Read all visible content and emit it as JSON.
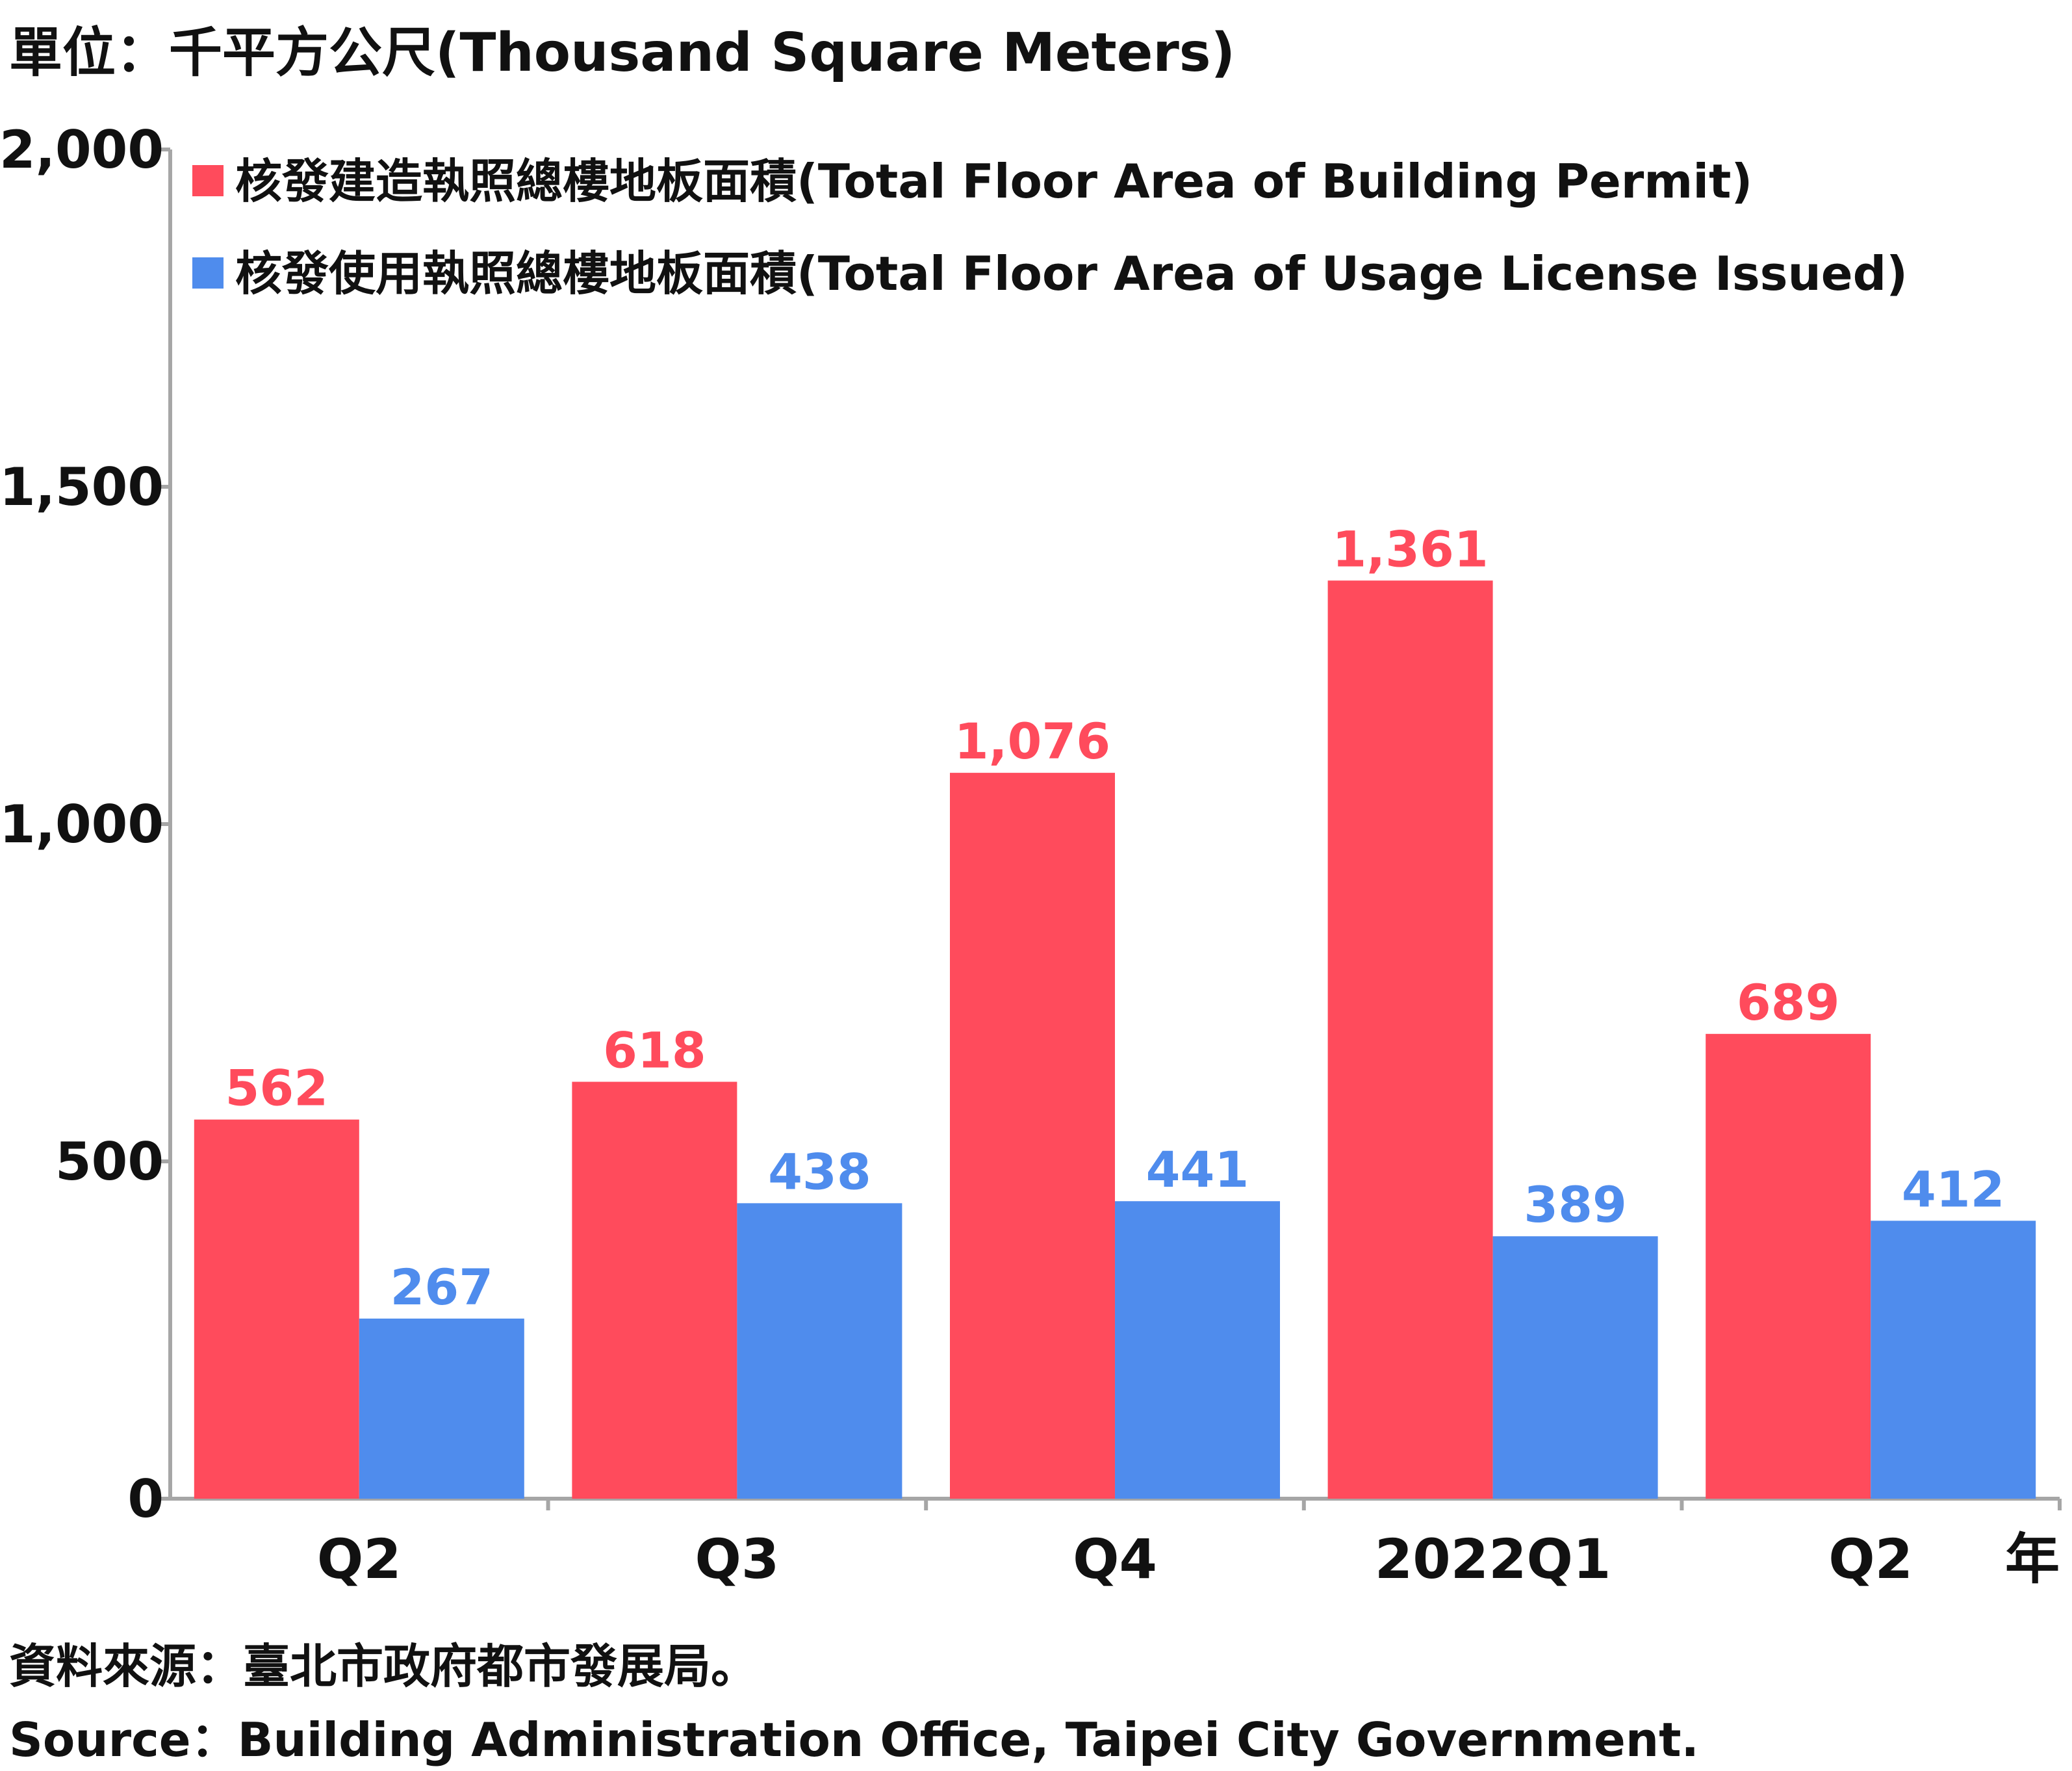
{
  "unit_label": "單位：千平方公尺(Thousand Square Meters)",
  "x_axis_suffix": "年",
  "source_zh": "資料來源：臺北市政府都市發展局。",
  "source_en": "Source：Building Administration Office, Taipei City Government.",
  "chart_data": {
    "type": "bar",
    "title": "",
    "xlabel": "",
    "ylabel": "",
    "categories": [
      "Q2",
      "Q3",
      "Q4",
      "2022Q1",
      "Q2"
    ],
    "ylim": [
      0,
      2000
    ],
    "yticks": [
      0,
      500,
      1000,
      1500,
      2000
    ],
    "ytick_labels": [
      "0",
      "500",
      "1,000",
      "1,500",
      "2,000"
    ],
    "grid": false,
    "legend_position": "top-left",
    "series": [
      {
        "name": "核發建造執照總樓地板面積(Total Floor Area of Building Permit)",
        "color": "#ff4b5c",
        "values": [
          562,
          618,
          1076,
          1361,
          689
        ],
        "labels": [
          "562",
          "618",
          "1,076",
          "1,361",
          "689"
        ]
      },
      {
        "name": "核發使用執照總樓地板面積(Total Floor Area of Usage License Issued)",
        "color": "#4f8ced",
        "values": [
          267,
          438,
          441,
          389,
          412
        ],
        "labels": [
          "267",
          "438",
          "441",
          "389",
          "412"
        ]
      }
    ]
  }
}
